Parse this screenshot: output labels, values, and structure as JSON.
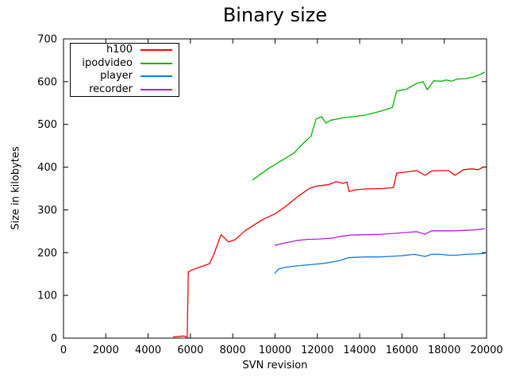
{
  "window": {
    "background": "#ffffff",
    "border_color": "#000000"
  },
  "chart_data": {
    "type": "line",
    "title": "Binary size",
    "xlabel": "SVN revision",
    "ylabel": "Size in kilobytes",
    "xlim": [
      0,
      20000
    ],
    "ylim": [
      0,
      700
    ],
    "xticks": [
      0,
      2000,
      4000,
      6000,
      8000,
      10000,
      12000,
      14000,
      16000,
      18000,
      20000
    ],
    "yticks": [
      0,
      100,
      200,
      300,
      400,
      500,
      600,
      700
    ],
    "grid": false,
    "legend_position": "top-left",
    "tick_style": "inward-mirrored",
    "series": [
      {
        "name": "h100",
        "color": "#ff0000",
        "points": [
          [
            5200,
            3
          ],
          [
            5700,
            5
          ],
          [
            5850,
            2
          ],
          [
            5900,
            155
          ],
          [
            6100,
            160
          ],
          [
            6550,
            168
          ],
          [
            6900,
            174
          ],
          [
            7100,
            195
          ],
          [
            7450,
            242
          ],
          [
            7800,
            225
          ],
          [
            8100,
            230
          ],
          [
            8600,
            252
          ],
          [
            9400,
            277
          ],
          [
            10000,
            291
          ],
          [
            10500,
            308
          ],
          [
            11100,
            332
          ],
          [
            11650,
            351
          ],
          [
            12000,
            356
          ],
          [
            12500,
            359
          ],
          [
            12900,
            366
          ],
          [
            13200,
            362
          ],
          [
            13400,
            365
          ],
          [
            13500,
            343
          ],
          [
            13800,
            347
          ],
          [
            14300,
            349
          ],
          [
            15100,
            350
          ],
          [
            15600,
            352
          ],
          [
            15750,
            386
          ],
          [
            16100,
            388
          ],
          [
            16700,
            392
          ],
          [
            17100,
            381
          ],
          [
            17400,
            391
          ],
          [
            17800,
            392
          ],
          [
            18200,
            392
          ],
          [
            18500,
            381
          ],
          [
            18900,
            394
          ],
          [
            19300,
            396
          ],
          [
            19600,
            394
          ],
          [
            19900,
            401
          ]
        ]
      },
      {
        "name": "ipodvideo",
        "color": "#00b400",
        "points": [
          [
            8950,
            370
          ],
          [
            9300,
            383
          ],
          [
            9700,
            397
          ],
          [
            10200,
            412
          ],
          [
            10900,
            433
          ],
          [
            11400,
            459
          ],
          [
            11700,
            472
          ],
          [
            11800,
            490
          ],
          [
            11950,
            513
          ],
          [
            12200,
            518
          ],
          [
            12400,
            503
          ],
          [
            12650,
            510
          ],
          [
            13200,
            515
          ],
          [
            13800,
            519
          ],
          [
            14300,
            522
          ],
          [
            15000,
            531
          ],
          [
            15400,
            537
          ],
          [
            15550,
            540
          ],
          [
            15750,
            578
          ],
          [
            16200,
            582
          ],
          [
            16700,
            596
          ],
          [
            17000,
            600
          ],
          [
            17200,
            581
          ],
          [
            17500,
            602
          ],
          [
            17900,
            601
          ],
          [
            18100,
            604
          ],
          [
            18350,
            601
          ],
          [
            18600,
            606
          ],
          [
            19000,
            607
          ],
          [
            19400,
            611
          ],
          [
            19700,
            617
          ],
          [
            19900,
            622
          ]
        ]
      },
      {
        "name": "player",
        "color": "#0c79e8",
        "points": [
          [
            10000,
            152
          ],
          [
            10150,
            161
          ],
          [
            10400,
            165
          ],
          [
            11000,
            169
          ],
          [
            11700,
            172
          ],
          [
            12300,
            175
          ],
          [
            12800,
            179
          ],
          [
            13100,
            182
          ],
          [
            13450,
            188
          ],
          [
            13800,
            189
          ],
          [
            14300,
            190
          ],
          [
            14900,
            190
          ],
          [
            15400,
            191
          ],
          [
            16000,
            193
          ],
          [
            16600,
            196
          ],
          [
            17100,
            191
          ],
          [
            17400,
            196
          ],
          [
            17800,
            196
          ],
          [
            18200,
            194
          ],
          [
            18600,
            194
          ],
          [
            19000,
            196
          ],
          [
            19500,
            197
          ],
          [
            19900,
            198
          ]
        ]
      },
      {
        "name": "recorder",
        "color": "#a822e0",
        "points": [
          [
            10000,
            217
          ],
          [
            10400,
            222
          ],
          [
            11000,
            228
          ],
          [
            11500,
            231
          ],
          [
            12100,
            232
          ],
          [
            12700,
            234
          ],
          [
            13100,
            238
          ],
          [
            13600,
            241
          ],
          [
            14300,
            242
          ],
          [
            15000,
            243
          ],
          [
            15600,
            245
          ],
          [
            16100,
            247
          ],
          [
            16700,
            249
          ],
          [
            17100,
            243
          ],
          [
            17400,
            251
          ],
          [
            17900,
            251
          ],
          [
            18400,
            251
          ],
          [
            18900,
            252
          ],
          [
            19400,
            253
          ],
          [
            19900,
            256
          ]
        ]
      }
    ]
  }
}
